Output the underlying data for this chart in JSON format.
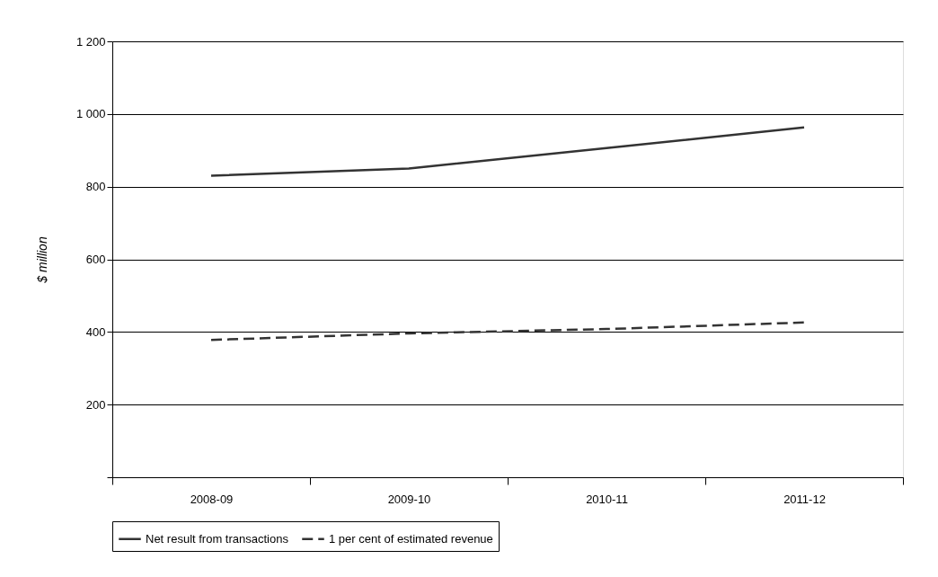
{
  "chart_data": {
    "type": "line",
    "ylabel": "$ million",
    "categories": [
      "2008-09",
      "2009-10",
      "2010-11",
      "2011-12"
    ],
    "series": [
      {
        "name": "Net result from transactions",
        "color": "#333333",
        "line_style": "solid",
        "values": [
          830,
          850,
          906,
          963
        ]
      },
      {
        "name": "1 per cent of estimated revenue",
        "color": "#333333",
        "line_style": "dashed",
        "values": [
          378,
          396,
          408,
          426
        ]
      }
    ],
    "ylim": [
      0,
      1200
    ],
    "yticks": [
      {
        "value": 0,
        "label": null
      },
      {
        "value": 200,
        "label": "200"
      },
      {
        "value": 400,
        "label": "400"
      },
      {
        "value": 600,
        "label": "600"
      },
      {
        "value": 800,
        "label": "800"
      },
      {
        "value": 1000,
        "label": "1 000"
      },
      {
        "value": 1200,
        "label": "1 200"
      }
    ],
    "grid": "y",
    "legend": "bottom",
    "marker": "none"
  }
}
